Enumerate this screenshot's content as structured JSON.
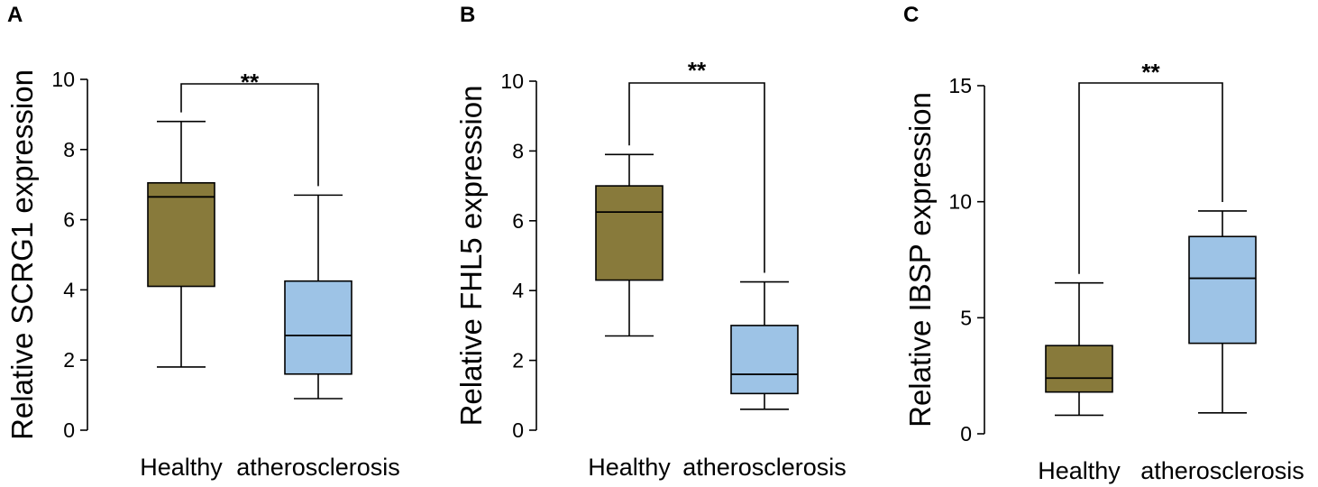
{
  "colors": {
    "healthy": "#887a3b",
    "atherosclerosis": "#9dc3e6",
    "line": "#000000"
  },
  "chart_data": [
    {
      "type": "box",
      "panel": "A",
      "ylabel": "Relative SCRG1 expression",
      "ylim": [
        0,
        10
      ],
      "yticks": [
        "0",
        "2",
        "4",
        "6",
        "8",
        "10"
      ],
      "categories": [
        "Healthy",
        "atherosclerosis"
      ],
      "boxes": [
        {
          "min": 1.8,
          "q1": 4.1,
          "median": 6.65,
          "q3": 7.05,
          "max": 8.8
        },
        {
          "min": 0.9,
          "q1": 1.6,
          "median": 2.7,
          "q3": 4.25,
          "max": 6.7
        }
      ],
      "significance": "**"
    },
    {
      "type": "box",
      "panel": "B",
      "ylabel": "Relative FHL5 expression",
      "ylim": [
        0,
        10
      ],
      "yticks": [
        "0",
        "2",
        "4",
        "6",
        "8",
        "10"
      ],
      "categories": [
        "Healthy",
        "atherosclerosis"
      ],
      "boxes": [
        {
          "min": 2.7,
          "q1": 4.3,
          "median": 6.25,
          "q3": 7.0,
          "max": 7.9
        },
        {
          "min": 0.6,
          "q1": 1.05,
          "median": 1.6,
          "q3": 3.0,
          "max": 4.25
        }
      ],
      "significance": "**"
    },
    {
      "type": "box",
      "panel": "C",
      "ylabel": "Relative IBSP expression",
      "ylim": [
        0,
        15
      ],
      "yticks": [
        "0",
        "5",
        "10",
        "15"
      ],
      "categories": [
        "Healthy",
        "atherosclerosis"
      ],
      "boxes": [
        {
          "min": 0.8,
          "q1": 1.8,
          "median": 2.4,
          "q3": 3.8,
          "max": 6.5
        },
        {
          "min": 0.9,
          "q1": 3.9,
          "median": 6.7,
          "q3": 8.5,
          "max": 9.6
        }
      ],
      "significance": "**"
    }
  ]
}
